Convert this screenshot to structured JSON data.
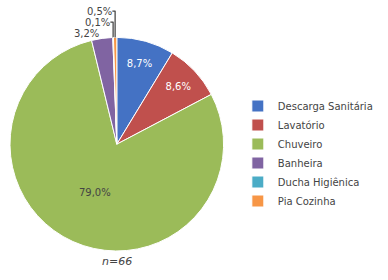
{
  "chart_data": {
    "type": "pie",
    "categories": [
      "Descarga Sanitária",
      "Lavatório",
      "Chuveiro",
      "Banheira",
      "Ducha Higiênica",
      "Pia Cozinha"
    ],
    "values": [
      8.7,
      8.6,
      79.0,
      3.2,
      0.1,
      0.5
    ],
    "value_labels": [
      "8,7%",
      "8,6%",
      "79,0%",
      "3,2%",
      "0,1%",
      "0,5%"
    ],
    "colors": [
      "#4472C4",
      "#C0504D",
      "#9BBB59",
      "#8064A2",
      "#4BACC6",
      "#F79646"
    ],
    "data_labels": true,
    "legend": "right",
    "annotations": [
      "n=66"
    ]
  }
}
